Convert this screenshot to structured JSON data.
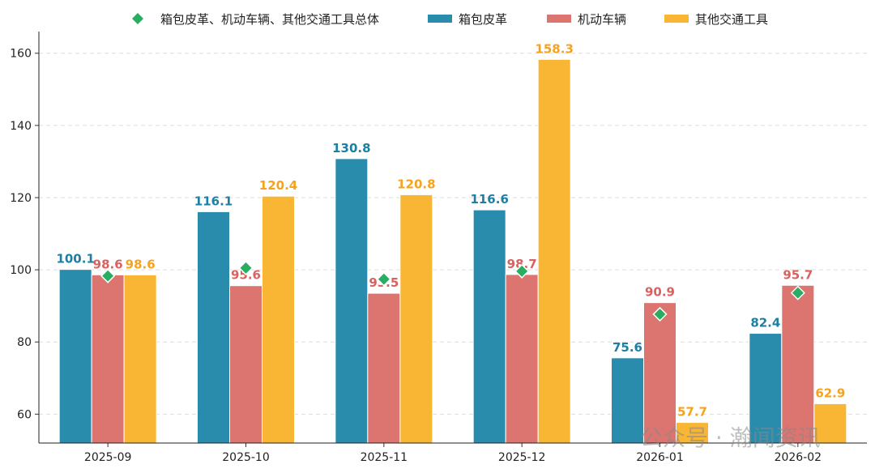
{
  "chart_data": {
    "type": "bar",
    "title": "",
    "xlabel": "",
    "ylabel": "",
    "categories": [
      "2025-09",
      "2025-10",
      "2025-11",
      "2025-12",
      "2026-01",
      "2026-02"
    ],
    "ylim": [
      52,
      166
    ],
    "yticks": [
      60,
      80,
      100,
      120,
      140,
      160
    ],
    "grid": "horizontal dashed",
    "legend_placement": "top",
    "series": [
      {
        "name": "箱包皮革",
        "type": "bar",
        "color": "#2a8cad",
        "label_color": "#1c7fa3",
        "values": [
          100.1,
          116.1,
          130.8,
          116.6,
          75.6,
          82.4
        ]
      },
      {
        "name": "机动车辆",
        "type": "bar",
        "color": "#dc7470",
        "label_color": "#d9625f",
        "values": [
          98.6,
          95.6,
          93.5,
          98.7,
          90.9,
          95.7
        ]
      },
      {
        "name": "其他交通工具",
        "type": "bar",
        "color": "#f9b534",
        "label_color": "#f5a31f",
        "values": [
          98.6,
          120.4,
          120.8,
          158.3,
          57.7,
          62.9
        ]
      },
      {
        "name": "箱包皮革、机动车辆、其他交通工具总体",
        "type": "scatter",
        "marker": "diamond",
        "color": "#27ae60",
        "values": [
          98.3,
          100.5,
          97.4,
          99.6,
          87.7,
          93.6
        ]
      }
    ]
  },
  "watermark": "公众号 · 瀚闻资讯"
}
